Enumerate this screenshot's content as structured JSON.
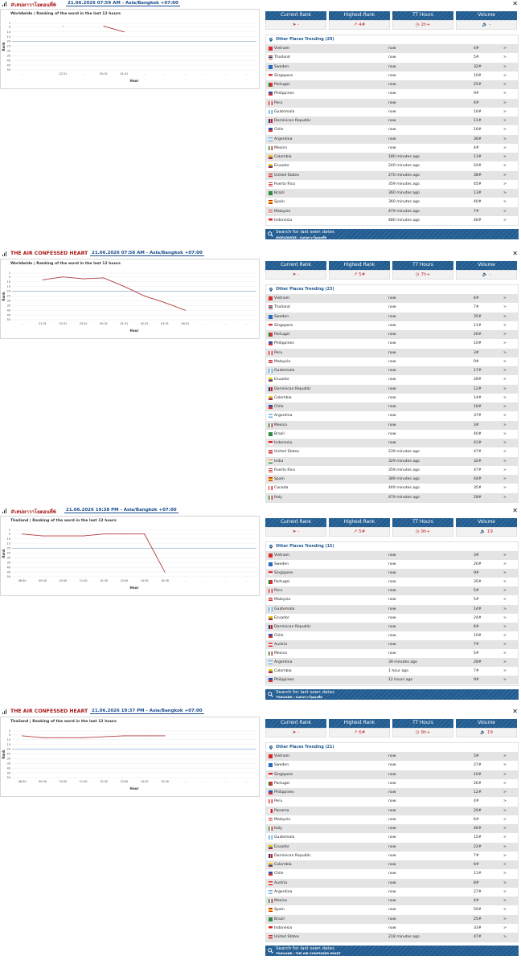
{
  "sections": [
    {
      "title": "#เสน่หาวาโยตอนที่6",
      "date": "21.06.2026 07:59 AM - Asia/Bangkok +07:00",
      "chart_title": "Worldwide | Ranking of the word in the last 12 hours",
      "stats": {
        "current_label": "Current Rank",
        "current_value": "-",
        "highest_label": "Highest Rank",
        "highest_value": "4#",
        "tt_label": "TT Hours",
        "tt_value": "2h+",
        "volume_label": "Volume",
        "volume_value": "-"
      },
      "places_label": "Other Places Trending (20)",
      "places": [
        {
          "country": "Vietnam",
          "time": "now",
          "rank": "4#"
        },
        {
          "country": "Thailand",
          "time": "now",
          "rank": "5#"
        },
        {
          "country": "Sweden",
          "time": "now",
          "rank": "32#"
        },
        {
          "country": "Singapore",
          "time": "now",
          "rank": "10#"
        },
        {
          "country": "Portugal",
          "time": "now",
          "rank": "25#"
        },
        {
          "country": "Philippines",
          "time": "now",
          "rank": "9#"
        },
        {
          "country": "Peru",
          "time": "now",
          "rank": "4#"
        },
        {
          "country": "Guatemala",
          "time": "now",
          "rank": "16#"
        },
        {
          "country": "Dominican Republic",
          "time": "now",
          "rank": "11#"
        },
        {
          "country": "Chile",
          "time": "now",
          "rank": "16#"
        },
        {
          "country": "Argentina",
          "time": "now",
          "rank": "36#"
        },
        {
          "country": "Mexico",
          "time": "now",
          "rank": "4#"
        },
        {
          "country": "Colombia",
          "time": "180 minutes ago",
          "rank": "13#"
        },
        {
          "country": "Ecuador",
          "time": "240 minutes ago",
          "rank": "24#"
        },
        {
          "country": "United States",
          "time": "270 minutes ago",
          "rank": "38#"
        },
        {
          "country": "Puerto Rico",
          "time": "359 minutes ago",
          "rank": "45#"
        },
        {
          "country": "Brazil",
          "time": "360 minutes ago",
          "rank": "13#"
        },
        {
          "country": "Spain",
          "time": "360 minutes ago",
          "rank": "40#"
        },
        {
          "country": "Malaysia",
          "time": "479 minutes ago",
          "rank": "7#"
        },
        {
          "country": "Indonesia",
          "time": "480 minutes ago",
          "rank": "46#"
        }
      ],
      "search_label": "Search for last seen dates",
      "search_sub": "WORLDWIDE › #เสน่หาวาโยตอนที่6"
    },
    {
      "title": "THE AIR CONFESSED HEART",
      "date": "21.06.2026 07:58 AM - Asia/Bangkok +07:00",
      "chart_title": "Worldwide | Ranking of the word in the last 12 hours",
      "stats": {
        "current_label": "Current Rank",
        "current_value": "-",
        "highest_label": "Highest Rank",
        "highest_value": "5#",
        "tt_label": "TT Hours",
        "tt_value": "7h+",
        "volume_label": "Volume",
        "volume_value": "-"
      },
      "places_label": "Other Places Trending (23)",
      "places": [
        {
          "country": "Vietnam",
          "time": "now",
          "rank": "6#"
        },
        {
          "country": "Thailand",
          "time": "now",
          "rank": "7#"
        },
        {
          "country": "Sweden",
          "time": "now",
          "rank": "35#"
        },
        {
          "country": "Singapore",
          "time": "now",
          "rank": "11#"
        },
        {
          "country": "Portugal",
          "time": "now",
          "rank": "26#"
        },
        {
          "country": "Philippines",
          "time": "now",
          "rank": "10#"
        },
        {
          "country": "Peru",
          "time": "now",
          "rank": "3#"
        },
        {
          "country": "Malaysia",
          "time": "now",
          "rank": "9#"
        },
        {
          "country": "Guatemala",
          "time": "now",
          "rank": "17#"
        },
        {
          "country": "Ecuador",
          "time": "now",
          "rank": "28#"
        },
        {
          "country": "Dominican Republic",
          "time": "now",
          "rank": "12#"
        },
        {
          "country": "Colombia",
          "time": "now",
          "rank": "14#"
        },
        {
          "country": "Chile",
          "time": "now",
          "rank": "18#"
        },
        {
          "country": "Argentina",
          "time": "now",
          "rank": "37#"
        },
        {
          "country": "Mexico",
          "time": "now",
          "rank": "3#"
        },
        {
          "country": "Brazil",
          "time": "now",
          "rank": "40#"
        },
        {
          "country": "Indonesia",
          "time": "now",
          "rank": "41#"
        },
        {
          "country": "United States",
          "time": "239 minutes ago",
          "rank": "47#"
        },
        {
          "country": "India",
          "time": "329 minutes ago",
          "rank": "32#"
        },
        {
          "country": "Puerto Rico",
          "time": "359 minutes ago",
          "rank": "47#"
        },
        {
          "country": "Spain",
          "time": "389 minutes ago",
          "rank": "44#"
        },
        {
          "country": "Canada",
          "time": "449 minutes ago",
          "rank": "35#"
        },
        {
          "country": "Italy",
          "time": "479 minutes ago",
          "rank": "28#"
        }
      ]
    },
    {
      "title": "#เสน่หาวาโยตอนที่6",
      "date": "21.06.2026 19:38 PM - Asia/Bangkok +07:00",
      "chart_title": "Thailand | Ranking of the word in the last 12 hours",
      "stats": {
        "current_label": "Current Rank",
        "current_value": "-",
        "highest_label": "Highest Rank",
        "highest_value": "5#",
        "tt_label": "TT Hours",
        "tt_value": "9h+",
        "volume_label": "Volume",
        "volume_value": "19"
      },
      "places_label": "Other Places Trending (15)",
      "places": [
        {
          "country": "Vietnam",
          "time": "now",
          "rank": "3#"
        },
        {
          "country": "Sweden",
          "time": "now",
          "rank": "26#"
        },
        {
          "country": "Singapore",
          "time": "now",
          "rank": "9#"
        },
        {
          "country": "Portugal",
          "time": "now",
          "rank": "35#"
        },
        {
          "country": "Peru",
          "time": "now",
          "rank": "5#"
        },
        {
          "country": "Malaysia",
          "time": "now",
          "rank": "5#"
        },
        {
          "country": "Guatemala",
          "time": "now",
          "rank": "14#"
        },
        {
          "country": "Ecuador",
          "time": "now",
          "rank": "24#"
        },
        {
          "country": "Dominican Republic",
          "time": "now",
          "rank": "6#"
        },
        {
          "country": "Chile",
          "time": "now",
          "rank": "10#"
        },
        {
          "country": "Austria",
          "time": "now",
          "rank": "7#"
        },
        {
          "country": "Mexico",
          "time": "now",
          "rank": "5#"
        },
        {
          "country": "Argentina",
          "time": "39 minutes ago",
          "rank": "28#"
        },
        {
          "country": "Colombia",
          "time": "1 hour ago",
          "rank": "7#"
        },
        {
          "country": "Philippines",
          "time": "12 hours ago",
          "rank": "9#"
        }
      ],
      "search_label": "Search for last seen dates",
      "search_sub": "THAILAND › #เสน่หาวาโยตอนที่6"
    },
    {
      "title": "THE AIR CONFESSED HEART",
      "date": "21.06.2026 19:37 PM - Asia/Bangkok +07:00",
      "chart_title": "Thailand | Ranking of the word in the last 12 hours",
      "stats": {
        "current_label": "Current Rank",
        "current_value": "-",
        "highest_label": "Highest Rank",
        "highest_value": "6#",
        "tt_label": "TT Hours",
        "tt_value": "9h+",
        "volume_label": "Volume",
        "volume_value": "19"
      },
      "places_label": "Other Places Trending (21)",
      "places": [
        {
          "country": "Vietnam",
          "time": "now",
          "rank": "5#"
        },
        {
          "country": "Sweden",
          "time": "now",
          "rank": "27#"
        },
        {
          "country": "Singapore",
          "time": "now",
          "rank": "10#"
        },
        {
          "country": "Portugal",
          "time": "now",
          "rank": "26#"
        },
        {
          "country": "Philippines",
          "time": "now",
          "rank": "12#"
        },
        {
          "country": "Peru",
          "time": "now",
          "rank": "4#"
        },
        {
          "country": "Panama",
          "time": "now",
          "rank": "20#"
        },
        {
          "country": "Malaysia",
          "time": "now",
          "rank": "6#"
        },
        {
          "country": "Italy",
          "time": "now",
          "rank": "46#"
        },
        {
          "country": "Guatemala",
          "time": "now",
          "rank": "15#"
        },
        {
          "country": "Ecuador",
          "time": "now",
          "rank": "22#"
        },
        {
          "country": "Dominican Republic",
          "time": "now",
          "rank": "7#"
        },
        {
          "country": "Colombia",
          "time": "now",
          "rank": "6#"
        },
        {
          "country": "Chile",
          "time": "now",
          "rank": "11#"
        },
        {
          "country": "Austria",
          "time": "now",
          "rank": "8#"
        },
        {
          "country": "Argentina",
          "time": "now",
          "rank": "27#"
        },
        {
          "country": "Mexico",
          "time": "now",
          "rank": "4#"
        },
        {
          "country": "Spain",
          "time": "now",
          "rank": "50#"
        },
        {
          "country": "Brazil",
          "time": "now",
          "rank": "25#"
        },
        {
          "country": "Indonesia",
          "time": "now",
          "rank": "33#"
        },
        {
          "country": "United States",
          "time": "218 minutes ago",
          "rank": "47#"
        }
      ],
      "search_label": "Search for last seen dates",
      "search_sub": "THAILAND › THE AIR CONFESSED HEART"
    }
  ],
  "row_arrow": ">",
  "chart_data": [
    {
      "type": "line",
      "title": "Worldwide | Ranking of the word in the last 12 hours",
      "xlabel": "Hour",
      "ylabel": "Rank",
      "yticks": [
        1,
        5,
        10,
        15,
        20,
        25,
        30,
        35,
        40,
        45,
        50
      ],
      "y_reversed": true,
      "categories": [
        "-",
        "-",
        "22:31",
        "-",
        "00:31",
        "01:31",
        "-",
        "-",
        "-",
        "-",
        "-",
        "-"
      ],
      "series": [
        {
          "values": [
            null,
            null,
            4,
            null,
            4,
            10,
            null,
            null,
            null,
            null,
            null,
            null
          ]
        }
      ],
      "reference_line": 20,
      "colors": {
        "series": "#b23a3a",
        "reference": "#8fb4d6"
      }
    },
    {
      "type": "line",
      "title": "Worldwide | Ranking of the word in the last 12 hours",
      "xlabel": "Hour",
      "ylabel": "Rank",
      "yticks": [
        1,
        5,
        10,
        15,
        20,
        25,
        30,
        35,
        40,
        45,
        50
      ],
      "y_reversed": true,
      "categories": [
        "-",
        "21:31",
        "22:31",
        "23:31",
        "00:31",
        "01:31",
        "02:31",
        "03:31",
        "04:31",
        "-",
        "-",
        "-"
      ],
      "series": [
        {
          "values": [
            null,
            8,
            5,
            7,
            6,
            15,
            25,
            32,
            40,
            null,
            null,
            null
          ]
        }
      ],
      "reference_line": 20,
      "colors": {
        "series": "#b23a3a",
        "reference": "#8fb4d6"
      }
    },
    {
      "type": "line",
      "title": "Thailand | Ranking of the word in the last 12 hours",
      "xlabel": "Hour",
      "ylabel": "Rank",
      "yticks": [
        1,
        5,
        10,
        15,
        20,
        25,
        30,
        35,
        40,
        45,
        50
      ],
      "y_reversed": true,
      "categories": [
        "08:30",
        "09:30",
        "10:30",
        "11:30",
        "12:30",
        "13:30",
        "14:30",
        "15:30",
        "-",
        "-",
        "-",
        "-"
      ],
      "series": [
        {
          "values": [
            5,
            7,
            7,
            7,
            5,
            5,
            5,
            45,
            null,
            null,
            null,
            null
          ]
        }
      ],
      "reference_line": 20,
      "colors": {
        "series": "#b23a3a",
        "reference": "#8fb4d6"
      }
    },
    {
      "type": "line",
      "title": "Thailand | Ranking of the word in the last 12 hours",
      "xlabel": "Hour",
      "ylabel": "Rank",
      "yticks": [
        1,
        5,
        10,
        15,
        20,
        25,
        30,
        35,
        40,
        45,
        50
      ],
      "y_reversed": true,
      "categories": [
        "08:30",
        "09:30",
        "10:30",
        "11:30",
        "12:30",
        "13:30",
        "14:30",
        "15:30",
        "-",
        "-",
        "-",
        "-"
      ],
      "series": [
        {
          "values": [
            6,
            8,
            8,
            8,
            7,
            6,
            6,
            6,
            null,
            null,
            null,
            null
          ]
        }
      ],
      "reference_line": 20,
      "colors": {
        "series": "#b23a3a",
        "reference": "#8fb4d6"
      }
    }
  ]
}
